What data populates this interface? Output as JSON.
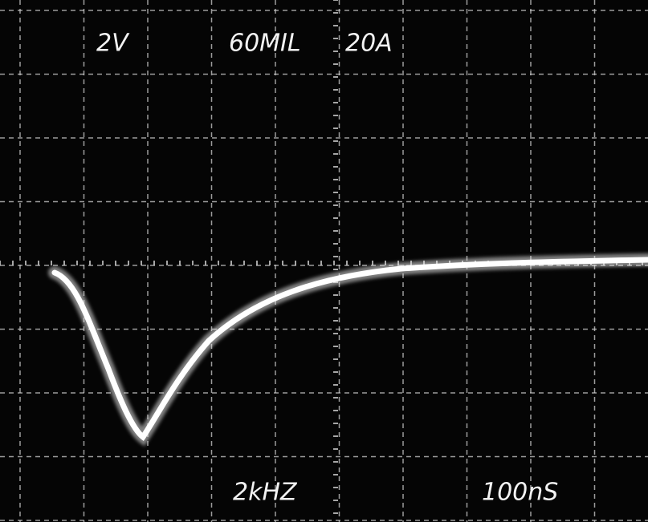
{
  "screen": {
    "top_labels": [
      "2V",
      "60MIL",
      "20A"
    ],
    "bottom_labels": [
      "2kHZ",
      "100nS"
    ]
  }
}
